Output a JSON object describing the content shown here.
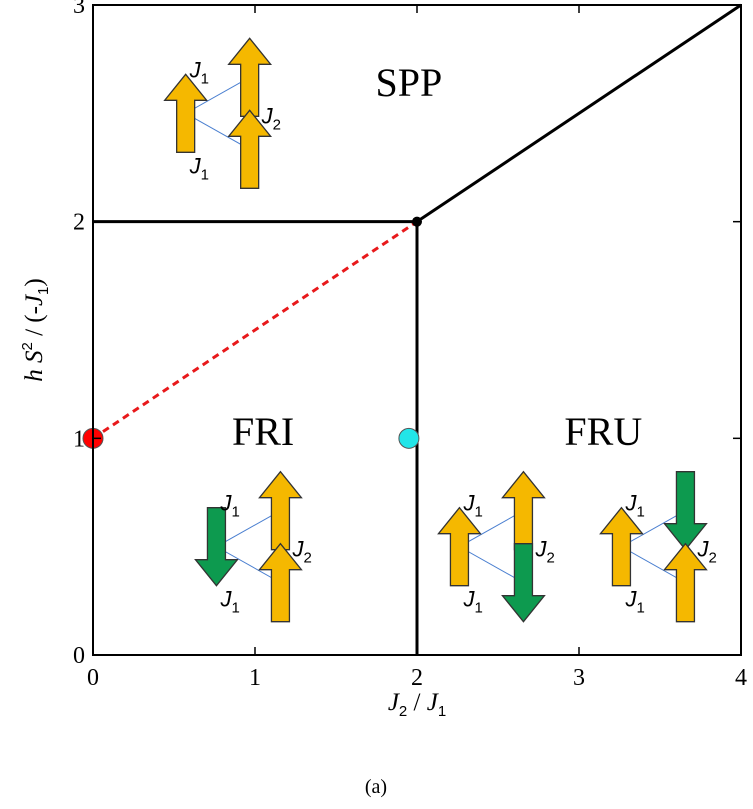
{
  "chart_data": {
    "type": "phase-diagram",
    "xlabel": {
      "main": "J",
      "sub": "2",
      "sep": " / ",
      "main2": "J",
      "sub2": "1"
    },
    "ylabel": {
      "h": "h ",
      "S": "S",
      "sup": "2",
      "rest": " / (-",
      "J": "J",
      "sub": "1",
      "close": ")"
    },
    "xlim": [
      0,
      4
    ],
    "ylim": [
      0,
      3
    ],
    "xticks": [
      0,
      1,
      2,
      3,
      4
    ],
    "yticks": [
      0,
      1,
      2,
      3
    ],
    "boundaries": [
      {
        "style": "solid",
        "color": "#000000",
        "points": [
          [
            0,
            2
          ],
          [
            2,
            2
          ]
        ]
      },
      {
        "style": "solid",
        "color": "#000000",
        "points": [
          [
            2,
            2
          ],
          [
            4,
            3
          ]
        ]
      },
      {
        "style": "solid",
        "color": "#000000",
        "points": [
          [
            2,
            0
          ],
          [
            2,
            2
          ]
        ]
      },
      {
        "style": "dashed",
        "color": "#e8191b",
        "points": [
          [
            0,
            1
          ],
          [
            2,
            2
          ]
        ]
      }
    ],
    "points": [
      {
        "x": 2,
        "y": 2,
        "color": "#000000",
        "kind": "triple-point"
      },
      {
        "x": 0,
        "y": 1,
        "color": "#ff0000",
        "kind": "marker"
      },
      {
        "x": 1.95,
        "y": 1,
        "color": "#22e5e8",
        "kind": "marker"
      }
    ],
    "regions": [
      {
        "label": "SPP",
        "x": 1.95,
        "y": 2.58
      },
      {
        "label": "FRI",
        "x": 1.05,
        "y": 0.97
      },
      {
        "label": "FRU",
        "x": 3.15,
        "y": 0.97
      }
    ],
    "spin_triangles": [
      {
        "name": "spp",
        "x": 0.93,
        "y": 2.5,
        "spins": [
          "up",
          "up",
          "up"
        ]
      },
      {
        "name": "fri",
        "x": 1.12,
        "y": 0.5,
        "spins": [
          "down",
          "up",
          "up"
        ]
      },
      {
        "name": "fru-a",
        "x": 2.62,
        "y": 0.5,
        "spins": [
          "up",
          "up",
          "down"
        ]
      },
      {
        "name": "fru-b",
        "x": 3.62,
        "y": 0.5,
        "spins": [
          "up",
          "down",
          "up"
        ]
      }
    ],
    "bond_labels": {
      "J": "J",
      "sub1": "1",
      "sub2": "2"
    },
    "colors": {
      "up": "#f5b800",
      "down": "#0d9a4f",
      "bond": "#4a7fd0",
      "frame": "#000000"
    }
  },
  "caption": "(a)"
}
